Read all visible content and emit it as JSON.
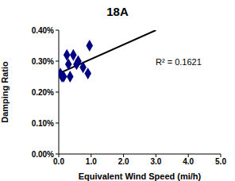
{
  "chart_data": {
    "type": "scatter",
    "title": "18A",
    "x_label": "Equivalent Wind Speed (mi/h)",
    "y_label": "Damping Ratio",
    "annotation": "R² = 0.1621",
    "x": [
      0.05,
      0.1,
      0.15,
      0.25,
      0.3,
      0.35,
      0.45,
      0.55,
      0.6,
      0.75,
      0.9,
      0.95
    ],
    "values": [
      0.26,
      0.25,
      0.25,
      0.32,
      0.29,
      0.25,
      0.32,
      0.29,
      0.3,
      0.28,
      0.26,
      0.35
    ],
    "color": "#000080",
    "marker": "diamond",
    "trendline": {
      "x": [
        0,
        3.0
      ],
      "values": [
        0.26,
        0.4
      ],
      "color": "#000000"
    },
    "xlim": [
      0,
      5
    ],
    "xticks": [
      {
        "value": 0,
        "label": "0.0"
      },
      {
        "value": 1,
        "label": "1.0"
      },
      {
        "value": 2,
        "label": "2.0"
      },
      {
        "value": 3,
        "label": "3.0"
      },
      {
        "value": 4,
        "label": "4.0"
      },
      {
        "value": 5,
        "label": "5.0"
      }
    ],
    "ylim": [
      0,
      0.4
    ],
    "yticks": [
      {
        "value": 0,
        "label": "0.00%"
      },
      {
        "value": 0.1,
        "label": "0.10%"
      },
      {
        "value": 0.2,
        "label": "0.20%"
      },
      {
        "value": 0.3,
        "label": "0.30%"
      },
      {
        "value": 0.4,
        "label": "0.40%"
      }
    ],
    "grid": false
  }
}
